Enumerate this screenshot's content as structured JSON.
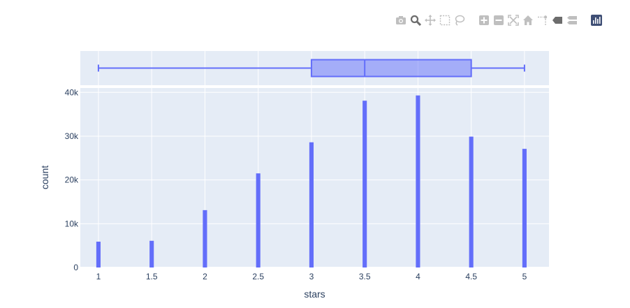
{
  "modebar": {
    "buttons": [
      {
        "name": "camera-icon",
        "group": 0,
        "color": "#bfbfbf"
      },
      {
        "name": "zoom-icon",
        "group": 0,
        "color": "#6d6d6d"
      },
      {
        "name": "pan-icon",
        "group": 0,
        "color": "#bfbfbf"
      },
      {
        "name": "box-select-icon",
        "group": 0,
        "color": "#bfbfbf"
      },
      {
        "name": "lasso-select-icon",
        "group": 0,
        "color": "#bfbfbf"
      },
      {
        "name": "zoom-in-icon",
        "group": 1,
        "color": "#bfbfbf"
      },
      {
        "name": "zoom-out-icon",
        "group": 1,
        "color": "#bfbfbf"
      },
      {
        "name": "autoscale-icon",
        "group": 1,
        "color": "#bfbfbf"
      },
      {
        "name": "reset-axes-icon",
        "group": 1,
        "color": "#bfbfbf"
      },
      {
        "name": "spike-lines-icon",
        "group": 1,
        "color": "#bfbfbf"
      },
      {
        "name": "hover-closest-icon",
        "group": 1,
        "color": "#6d6d6d"
      },
      {
        "name": "hover-compare-icon",
        "group": 1,
        "color": "#bfbfbf"
      },
      {
        "name": "plotly-logo-icon",
        "group": 2,
        "color": "#3f4f75"
      }
    ]
  },
  "colors": {
    "bar": "#636efa",
    "plot_bg": "#e5ecf6",
    "grid": "#ffffff",
    "text": "#2a3f5f"
  },
  "chart_data": {
    "type": "bar",
    "xlabel": "stars",
    "ylabel": "count",
    "x_range": [
      0.83,
      5.23
    ],
    "y_range": [
      0,
      41000
    ],
    "x_ticks": [
      {
        "value": 1,
        "label": "1"
      },
      {
        "value": 1.5,
        "label": "1.5"
      },
      {
        "value": 2,
        "label": "2"
      },
      {
        "value": 2.5,
        "label": "2.5"
      },
      {
        "value": 3,
        "label": "3"
      },
      {
        "value": 3.5,
        "label": "3.5"
      },
      {
        "value": 4,
        "label": "4"
      },
      {
        "value": 4.5,
        "label": "4.5"
      },
      {
        "value": 5,
        "label": "5"
      }
    ],
    "y_ticks": [
      {
        "value": 0,
        "label": "0"
      },
      {
        "value": 10000,
        "label": "10k"
      },
      {
        "value": 20000,
        "label": "20k"
      },
      {
        "value": 30000,
        "label": "30k"
      },
      {
        "value": 40000,
        "label": "40k"
      }
    ],
    "bin_width": 0.04,
    "bars": [
      {
        "x": 1,
        "y": 5900
      },
      {
        "x": 1.5,
        "y": 6100
      },
      {
        "x": 2,
        "y": 13100
      },
      {
        "x": 2.5,
        "y": 21500
      },
      {
        "x": 3,
        "y": 28600
      },
      {
        "x": 3.5,
        "y": 38100
      },
      {
        "x": 4,
        "y": 39300
      },
      {
        "x": 4.5,
        "y": 29900
      },
      {
        "x": 5,
        "y": 27100
      }
    ],
    "box": {
      "min": 1,
      "q1": 3,
      "median": 3.5,
      "q3": 4.5,
      "max": 5
    }
  }
}
